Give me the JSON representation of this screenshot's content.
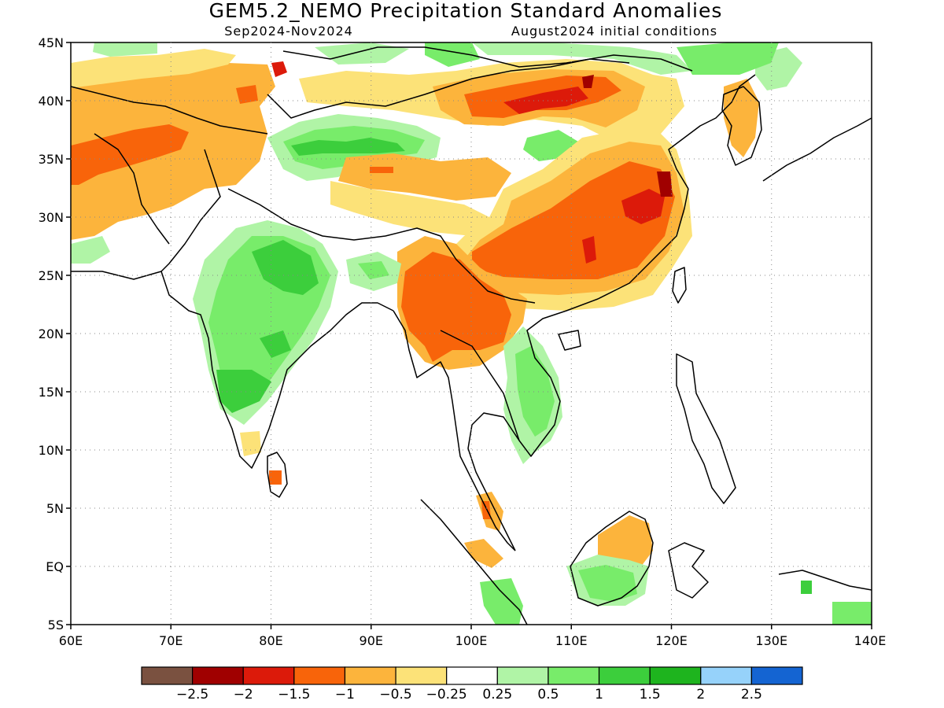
{
  "title": "GEM5.2_NEMO Precipitation Standard Anomalies",
  "subtitle_left": "Sep2024-Nov2024",
  "subtitle_right": "August2024 initial conditions",
  "lat_ticks": [
    "45N",
    "40N",
    "35N",
    "30N",
    "25N",
    "20N",
    "15N",
    "10N",
    "5N",
    "EQ",
    "5S"
  ],
  "lon_ticks": [
    "60E",
    "70E",
    "80E",
    "90E",
    "100E",
    "110E",
    "120E",
    "130E",
    "140E"
  ],
  "colorbar": {
    "colors": [
      "#7a5140",
      "#a00000",
      "#dc1a0a",
      "#f8640a",
      "#fcb43c",
      "#fce278",
      "#ffffff",
      "#b0f4a6",
      "#78ec6a",
      "#3cce3c",
      "#1eb41e",
      "#96d2fa",
      "#1464d2"
    ],
    "labels": [
      "-2.5",
      "-2",
      "-1.5",
      "-1",
      "-0.5",
      "-0.25",
      "0.25",
      "0.5",
      "1",
      "1.5",
      "2",
      "2.5"
    ]
  },
  "colors": {
    "strong_orange": "#f8640a",
    "orange": "#fcb43c",
    "yellow": "#fce278",
    "light_green": "#b0f4a6",
    "green": "#78ec6a",
    "mid_green": "#3cce3c",
    "red": "#dc1a0a",
    "dark_red": "#a00000"
  }
}
